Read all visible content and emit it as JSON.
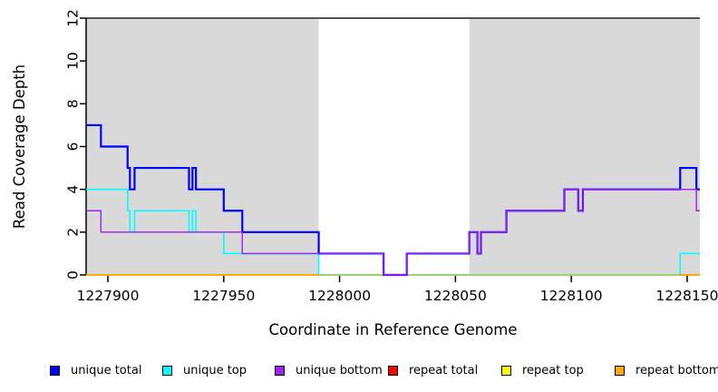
{
  "figure": {
    "background": "#ffffff",
    "plot_shading_color": "#d9d9d9",
    "top_border_color": "#545454"
  },
  "legend": {
    "items": [
      {
        "name": "unique-total",
        "label": "unique total",
        "color": "#0000ff"
      },
      {
        "name": "unique-top",
        "label": "unique top",
        "color": "#00ffff"
      },
      {
        "name": "unique-bottom",
        "label": "unique bottom",
        "color": "#a020f0"
      },
      {
        "name": "repeat-total",
        "label": "repeat total",
        "color": "#ff0000"
      },
      {
        "name": "repeat-top",
        "label": "repeat top",
        "color": "#ffff00"
      },
      {
        "name": "repeat-bottom",
        "label": "repeat bottom",
        "color": "#ffa500"
      }
    ]
  },
  "chart_data": {
    "type": "line",
    "step": true,
    "title": "",
    "xlabel": "Coordinate in Reference Genome",
    "ylabel": "Read Coverage Depth",
    "xlim": [
      1227890.6,
      1228155.5
    ],
    "ylim": [
      0,
      12
    ],
    "xticks": [
      1227900,
      1227950,
      1228000,
      1228050,
      1228100,
      1228150
    ],
    "yticks": [
      0,
      2,
      4,
      6,
      8,
      10,
      12
    ],
    "grid": false,
    "legend_position": "bottom",
    "shaded_regions": [
      {
        "name": "repeat-region-left",
        "x0": 1227890.6,
        "x1": 1227991,
        "color": "#d9d9d9"
      },
      {
        "name": "repeat-region-right",
        "x0": 1228056,
        "x1": 1228155.5,
        "color": "#d9d9d9"
      }
    ],
    "top_border_y": 12,
    "series": [
      {
        "name": "repeat total",
        "color": "#ff0000",
        "width": 1.4,
        "steps": [
          [
            1227890.6,
            0
          ]
        ]
      },
      {
        "name": "repeat top",
        "color": "#ffff00",
        "width": 1.4,
        "steps": [
          [
            1227890.6,
            0
          ]
        ]
      },
      {
        "name": "unique top",
        "color": "#00ffff",
        "width": 1.6,
        "steps": [
          [
            1227890.6,
            4
          ],
          [
            1227908.5,
            3
          ],
          [
            1227909.5,
            2
          ],
          [
            1227911.5,
            3
          ],
          [
            1227935,
            2
          ],
          [
            1227936.5,
            3
          ],
          [
            1227938,
            2
          ],
          [
            1227950,
            1
          ],
          [
            1227991,
            0
          ],
          [
            1228147,
            1
          ]
        ]
      },
      {
        "name": "repeat bottom",
        "color": "#ffa500",
        "width": 1.8,
        "steps": [
          [
            1227890.6,
            0
          ]
        ]
      },
      {
        "name": "cyan-over-orange overlap blend at zero",
        "color": "#85d98a",
        "width": 1.6,
        "steps": [
          [
            1227991,
            0
          ]
        ],
        "x_end": 1228147
      },
      {
        "name": "unique total",
        "color": "#0000ff",
        "width": 2.2,
        "steps": [
          [
            1227890.6,
            7
          ],
          [
            1227897,
            6
          ],
          [
            1227908.5,
            5
          ],
          [
            1227909.5,
            4
          ],
          [
            1227911.5,
            5
          ],
          [
            1227935,
            4
          ],
          [
            1227936.5,
            5
          ],
          [
            1227938,
            4
          ],
          [
            1227950,
            3
          ],
          [
            1227958,
            2
          ],
          [
            1227991,
            1
          ],
          [
            1228019,
            0
          ],
          [
            1228029,
            1
          ],
          [
            1228056,
            2
          ],
          [
            1228059.5,
            1
          ],
          [
            1228061,
            2
          ],
          [
            1228072,
            3
          ],
          [
            1228097,
            4
          ],
          [
            1228103,
            3
          ],
          [
            1228105,
            4
          ],
          [
            1228147,
            5
          ],
          [
            1228154,
            4
          ]
        ]
      },
      {
        "name": "unique bottom",
        "color": "#a020f0",
        "width": 1.4,
        "steps": [
          [
            1227890.6,
            3
          ],
          [
            1227897,
            2
          ],
          [
            1227958,
            1
          ],
          [
            1228019,
            0
          ],
          [
            1228029,
            1
          ],
          [
            1228056,
            2
          ],
          [
            1228059.5,
            1
          ],
          [
            1228061,
            2
          ],
          [
            1228072,
            3
          ],
          [
            1228097,
            4
          ],
          [
            1228103,
            3
          ],
          [
            1228105,
            4
          ],
          [
            1228154,
            3
          ]
        ]
      }
    ]
  }
}
